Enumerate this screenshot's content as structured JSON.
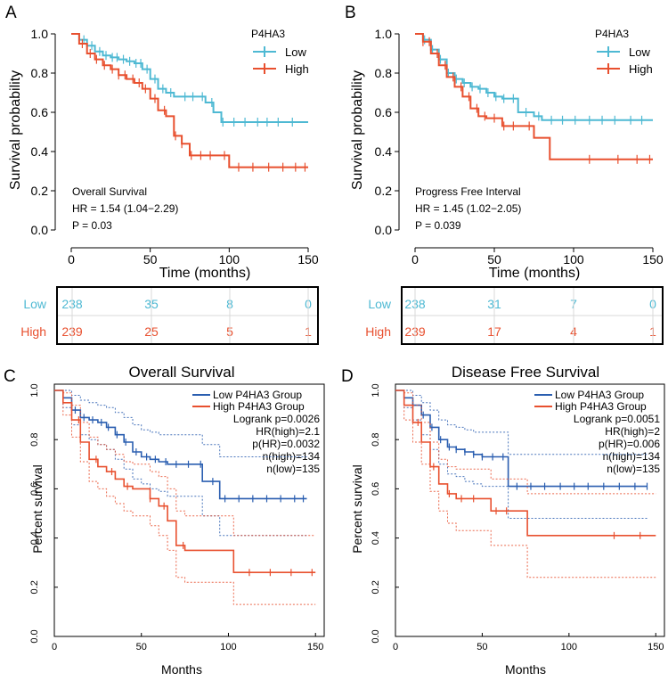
{
  "colors": {
    "low_top": "#4EB9D3",
    "high_top": "#E8502F",
    "low_bottom": "#2A5EB0",
    "high_bottom": "#E8502F",
    "axis": "#000000",
    "table_grid": "#d9d9d9"
  },
  "panel_labels": [
    "A",
    "B",
    "C",
    "D"
  ],
  "chart_data": [
    {
      "panel": "A",
      "type": "line",
      "subtype": "kaplan-meier",
      "xlabel": "Time (months)",
      "ylabel": "Survival probability",
      "xlim": [
        0,
        150
      ],
      "ylim": [
        0,
        1
      ],
      "xticks": [
        "0",
        "50",
        "100",
        "150"
      ],
      "yticks": [
        "0.0",
        "0.2",
        "0.4",
        "0.6",
        "0.8",
        "1.0"
      ],
      "legend_title": "P4HA3",
      "legend": [
        "Low",
        "High"
      ],
      "annotations": [
        "Overall Survival",
        "HR = 1.54 (1.04−2.29)",
        "P = 0.03"
      ],
      "series": [
        {
          "name": "Low",
          "x": [
            0,
            5,
            10,
            15,
            20,
            25,
            30,
            35,
            40,
            45,
            50,
            55,
            60,
            65,
            70,
            75,
            80,
            85,
            90,
            95,
            100,
            150
          ],
          "y": [
            1.0,
            0.97,
            0.94,
            0.91,
            0.89,
            0.88,
            0.87,
            0.86,
            0.85,
            0.82,
            0.77,
            0.72,
            0.7,
            0.68,
            0.68,
            0.68,
            0.68,
            0.65,
            0.6,
            0.55,
            0.55,
            0.55
          ],
          "censor_x": [
            8,
            13,
            18,
            22,
            26,
            29,
            33,
            37,
            41,
            44,
            48,
            53,
            58,
            63,
            72,
            77,
            83,
            89,
            96,
            103,
            110,
            118,
            124,
            131,
            140
          ]
        },
        {
          "name": "High",
          "x": [
            0,
            5,
            10,
            15,
            20,
            25,
            30,
            35,
            40,
            45,
            50,
            55,
            60,
            65,
            70,
            75,
            80,
            85,
            90,
            95,
            100,
            150
          ],
          "y": [
            1.0,
            0.95,
            0.9,
            0.87,
            0.84,
            0.82,
            0.79,
            0.77,
            0.75,
            0.72,
            0.67,
            0.61,
            0.58,
            0.48,
            0.44,
            0.38,
            0.38,
            0.38,
            0.38,
            0.38,
            0.32,
            0.32
          ],
          "censor_x": [
            7,
            12,
            16,
            21,
            26,
            30,
            34,
            39,
            43,
            47,
            53,
            59,
            66,
            70,
            76,
            82,
            88,
            97,
            106,
            115,
            125,
            134,
            142,
            148
          ]
        }
      ],
      "risk_table": {
        "groups": [
          "Low",
          "High"
        ],
        "values": [
          [
            "238",
            "35",
            "8",
            "0"
          ],
          [
            "239",
            "25",
            "5",
            "1"
          ]
        ]
      }
    },
    {
      "panel": "B",
      "type": "line",
      "subtype": "kaplan-meier",
      "xlabel": "Time (months)",
      "ylabel": "Survival probability",
      "xlim": [
        0,
        150
      ],
      "ylim": [
        0,
        1
      ],
      "xticks": [
        "0",
        "50",
        "100",
        "150"
      ],
      "yticks": [
        "0.0",
        "0.2",
        "0.4",
        "0.6",
        "0.8",
        "1.0"
      ],
      "legend_title": "P4HA3",
      "legend": [
        "Low",
        "High"
      ],
      "annotations": [
        "Progress Free Interval",
        "HR = 1.45 (1.02−2.05)",
        "P = 0.039"
      ],
      "series": [
        {
          "name": "Low",
          "x": [
            0,
            5,
            10,
            15,
            20,
            25,
            30,
            35,
            40,
            45,
            50,
            55,
            60,
            65,
            70,
            75,
            80,
            85,
            90,
            95,
            100,
            150
          ],
          "y": [
            1.0,
            0.97,
            0.92,
            0.87,
            0.8,
            0.77,
            0.75,
            0.73,
            0.72,
            0.7,
            0.68,
            0.67,
            0.67,
            0.6,
            0.6,
            0.58,
            0.56,
            0.56,
            0.56,
            0.56,
            0.56,
            0.56
          ],
          "censor_x": [
            6,
            11,
            16,
            21,
            26,
            31,
            36,
            41,
            46,
            51,
            56,
            62,
            70,
            78,
            86,
            93,
            101,
            110,
            118,
            126,
            136,
            143
          ]
        },
        {
          "name": "High",
          "x": [
            0,
            5,
            10,
            15,
            20,
            25,
            30,
            35,
            40,
            45,
            50,
            55,
            60,
            65,
            70,
            75,
            80,
            85,
            90,
            95,
            100,
            150
          ],
          "y": [
            1.0,
            0.96,
            0.9,
            0.84,
            0.78,
            0.73,
            0.68,
            0.62,
            0.58,
            0.57,
            0.57,
            0.53,
            0.53,
            0.53,
            0.53,
            0.47,
            0.47,
            0.36,
            0.36,
            0.36,
            0.36,
            0.36
          ],
          "censor_x": [
            5,
            9,
            14,
            19,
            24,
            29,
            34,
            39,
            44,
            50,
            56,
            62,
            72,
            110,
            128,
            140,
            148
          ]
        }
      ],
      "risk_table": {
        "groups": [
          "Low",
          "High"
        ],
        "values": [
          [
            "238",
            "31",
            "7",
            "0"
          ],
          [
            "239",
            "17",
            "4",
            "1"
          ]
        ]
      }
    },
    {
      "panel": "C",
      "type": "line",
      "subtype": "kaplan-meier",
      "title": "Overall Survival",
      "xlabel": "Months",
      "ylabel": "Percent survival",
      "xlim": [
        0,
        155
      ],
      "ylim": [
        0,
        1
      ],
      "xticks": [
        "0",
        "50",
        "100",
        "150"
      ],
      "yticks": [
        "0.0",
        "0.2",
        "0.4",
        "0.6",
        "0.8",
        "1.0"
      ],
      "legend": [
        "Low P4HA3 Group",
        "High P4HA3 Group"
      ],
      "stats": [
        "Logrank p=0.0026",
        "HR(high)=2.1",
        "p(HR)=0.0032",
        "n(high)=134",
        "n(low)=135"
      ],
      "series": [
        {
          "name": "Low P4HA3 Group",
          "x": [
            0,
            5,
            10,
            15,
            20,
            25,
            30,
            35,
            40,
            45,
            50,
            55,
            60,
            65,
            70,
            75,
            80,
            85,
            90,
            95,
            100,
            145
          ],
          "y": [
            1.0,
            0.97,
            0.92,
            0.89,
            0.88,
            0.87,
            0.85,
            0.82,
            0.79,
            0.75,
            0.73,
            0.72,
            0.71,
            0.7,
            0.7,
            0.7,
            0.7,
            0.63,
            0.63,
            0.56,
            0.56,
            0.56
          ],
          "ci_upper": [
            1.0,
            1.0,
            0.98,
            0.96,
            0.95,
            0.94,
            0.93,
            0.91,
            0.89,
            0.86,
            0.84,
            0.83,
            0.82,
            0.82,
            0.82,
            0.82,
            0.82,
            0.78,
            0.78,
            0.73,
            0.73,
            0.73
          ],
          "ci_lower": [
            1.0,
            0.93,
            0.86,
            0.82,
            0.8,
            0.78,
            0.76,
            0.72,
            0.68,
            0.64,
            0.62,
            0.6,
            0.59,
            0.57,
            0.57,
            0.57,
            0.57,
            0.49,
            0.49,
            0.41,
            0.41,
            0.41
          ],
          "censor_x": [
            12,
            17,
            22,
            27,
            31,
            36,
            41,
            47,
            53,
            58,
            64,
            70,
            77,
            84,
            91,
            98,
            106,
            114,
            122,
            130,
            138,
            143
          ]
        },
        {
          "name": "High P4HA3 Group",
          "x": [
            0,
            5,
            10,
            15,
            20,
            25,
            30,
            35,
            40,
            45,
            50,
            55,
            60,
            65,
            70,
            75,
            80,
            85,
            90,
            95,
            100,
            103,
            150
          ],
          "y": [
            1.0,
            0.95,
            0.88,
            0.79,
            0.72,
            0.69,
            0.67,
            0.64,
            0.61,
            0.6,
            0.6,
            0.56,
            0.53,
            0.47,
            0.37,
            0.35,
            0.35,
            0.35,
            0.35,
            0.35,
            0.35,
            0.26,
            0.26
          ],
          "ci_upper": [
            1.0,
            0.99,
            0.94,
            0.87,
            0.81,
            0.78,
            0.76,
            0.74,
            0.71,
            0.7,
            0.7,
            0.67,
            0.65,
            0.6,
            0.51,
            0.49,
            0.49,
            0.49,
            0.49,
            0.49,
            0.49,
            0.41,
            0.41
          ],
          "ci_lower": [
            1.0,
            0.9,
            0.81,
            0.71,
            0.63,
            0.6,
            0.57,
            0.54,
            0.51,
            0.49,
            0.49,
            0.45,
            0.41,
            0.35,
            0.24,
            0.22,
            0.22,
            0.22,
            0.22,
            0.22,
            0.22,
            0.13,
            0.13
          ],
          "censor_x": [
            14,
            24,
            33,
            42,
            55,
            63,
            74,
            112,
            124,
            136,
            148
          ]
        }
      ]
    },
    {
      "panel": "D",
      "type": "line",
      "subtype": "kaplan-meier",
      "title": "Disease Free Survival",
      "xlabel": "Months",
      "ylabel": "Percent survival",
      "xlim": [
        0,
        155
      ],
      "ylim": [
        0,
        1
      ],
      "xticks": [
        "0",
        "50",
        "100",
        "150"
      ],
      "yticks": [
        "0.0",
        "0.2",
        "0.4",
        "0.6",
        "0.8",
        "1.0"
      ],
      "legend": [
        "Low P4HA3 Group",
        "High P4HA3 Group"
      ],
      "stats": [
        "Logrank p=0.0051",
        "HR(high)=2",
        "p(HR)=0.006",
        "n(high)=134",
        "n(low)=135"
      ],
      "series": [
        {
          "name": "Low P4HA3 Group",
          "x": [
            0,
            5,
            10,
            15,
            20,
            25,
            30,
            35,
            40,
            45,
            50,
            55,
            60,
            65,
            70,
            145
          ],
          "y": [
            1.0,
            0.97,
            0.94,
            0.9,
            0.85,
            0.8,
            0.77,
            0.76,
            0.75,
            0.74,
            0.73,
            0.73,
            0.73,
            0.61,
            0.61,
            0.61
          ],
          "ci_upper": [
            1.0,
            1.0,
            0.98,
            0.95,
            0.92,
            0.88,
            0.86,
            0.85,
            0.84,
            0.83,
            0.83,
            0.83,
            0.83,
            0.74,
            0.74,
            0.74
          ],
          "ci_lower": [
            1.0,
            0.93,
            0.88,
            0.82,
            0.76,
            0.7,
            0.66,
            0.65,
            0.63,
            0.62,
            0.61,
            0.61,
            0.61,
            0.48,
            0.48,
            0.48
          ],
          "censor_x": [
            10,
            16,
            21,
            26,
            31,
            35,
            40,
            45,
            50,
            56,
            62,
            70,
            78,
            86,
            95,
            103,
            111,
            120,
            129,
            138,
            145
          ]
        },
        {
          "name": "High P4HA3 Group",
          "x": [
            0,
            5,
            10,
            15,
            20,
            25,
            30,
            35,
            40,
            45,
            50,
            55,
            60,
            65,
            70,
            75,
            76,
            150
          ],
          "y": [
            1.0,
            0.94,
            0.87,
            0.79,
            0.69,
            0.62,
            0.58,
            0.56,
            0.56,
            0.56,
            0.56,
            0.51,
            0.51,
            0.51,
            0.51,
            0.51,
            0.41,
            0.41
          ],
          "ci_upper": [
            1.0,
            0.99,
            0.94,
            0.87,
            0.79,
            0.72,
            0.69,
            0.68,
            0.68,
            0.68,
            0.68,
            0.64,
            0.64,
            0.64,
            0.64,
            0.64,
            0.58,
            0.58
          ],
          "ci_lower": [
            1.0,
            0.88,
            0.79,
            0.7,
            0.59,
            0.51,
            0.46,
            0.43,
            0.43,
            0.43,
            0.43,
            0.37,
            0.37,
            0.37,
            0.37,
            0.37,
            0.24,
            0.24
          ],
          "censor_x": [
            13,
            22,
            31,
            38,
            45,
            58,
            64,
            126,
            141
          ]
        }
      ]
    }
  ]
}
